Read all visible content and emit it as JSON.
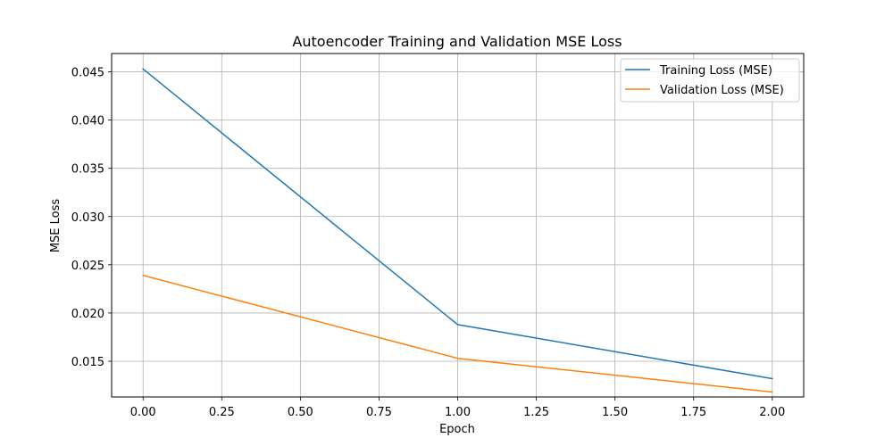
{
  "chart_data": {
    "type": "line",
    "title": "Autoencoder Training and Validation MSE Loss",
    "xlabel": "Epoch",
    "ylabel": "MSE Loss",
    "x": [
      0,
      1,
      2
    ],
    "xlim": [
      -0.1,
      2.1
    ],
    "ylim": [
      0.0113,
      0.0469
    ],
    "xticks": [
      "0.00",
      "0.25",
      "0.50",
      "0.75",
      "1.00",
      "1.25",
      "1.50",
      "1.75",
      "2.00"
    ],
    "yticks": [
      "0.015",
      "0.020",
      "0.025",
      "0.030",
      "0.035",
      "0.040",
      "0.045"
    ],
    "grid": true,
    "legend_position": "top-right",
    "series": [
      {
        "name": "Training Loss (MSE)",
        "color": "#1f77b4",
        "values": [
          0.0453,
          0.0188,
          0.0132
        ]
      },
      {
        "name": "Validation Loss (MSE)",
        "color": "#ff7f0e",
        "values": [
          0.0239,
          0.0153,
          0.0118
        ]
      }
    ]
  }
}
